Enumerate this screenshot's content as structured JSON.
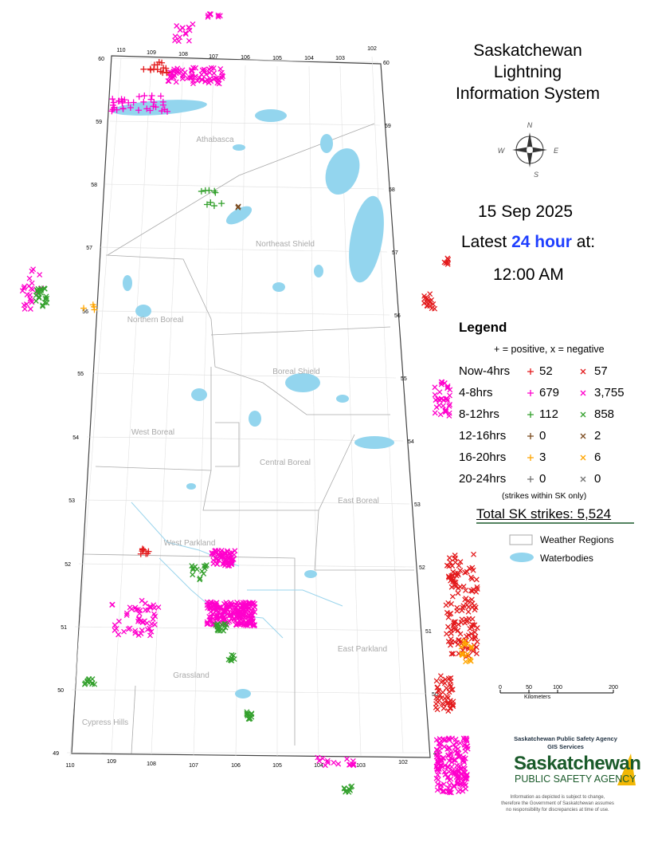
{
  "title": [
    "Saskatchewan",
    "Lightning",
    "Information System"
  ],
  "compass": {
    "n": "N",
    "e": "E",
    "s": "S",
    "w": "W"
  },
  "date": "15 Sep 2025",
  "latest": {
    "before": "Latest",
    "highlight": "24 hour",
    "after": "at:"
  },
  "time": "12:00 AM",
  "legend": {
    "title": "Legend",
    "note": "+ = positive, x = negative",
    "rows": [
      {
        "label": "Now-4hrs",
        "positive": "52",
        "negative": "57",
        "color": "#e31a1c"
      },
      {
        "label": "4-8hrs",
        "positive": "679",
        "negative": "3,755",
        "color": "#ff00cc"
      },
      {
        "label": "8-12hrs",
        "positive": "112",
        "negative": "858",
        "color": "#33a02c"
      },
      {
        "label": "12-16hrs",
        "positive": "0",
        "negative": "2",
        "color": "#7b4a1e"
      },
      {
        "label": "16-20hrs",
        "positive": "3",
        "negative": "6",
        "color": "#ffa500"
      },
      {
        "label": "20-24hrs",
        "positive": "0",
        "negative": "0",
        "color": "#707070"
      }
    ],
    "scope": "(strikes within SK only)",
    "total": "Total SK strikes: 5,524",
    "regions": "Weather Regions",
    "water": "Waterbodies"
  },
  "scale": {
    "ticks": [
      "0",
      "50",
      "100",
      "200"
    ],
    "unit": "Kilometers"
  },
  "credit": [
    "Saskatchewan Public Safety Agency",
    "GIS Services"
  ],
  "logo": [
    "Saskatchewan",
    "PUBLIC SAFETY AGENCY"
  ],
  "disclaimer": [
    "Information as depicted is subject to change,",
    "therefore the Government of Saskatchewan assumes",
    "no responsibility for discrepancies at time of use."
  ],
  "regions": [
    "Athabasca",
    "Northeast Shield",
    "Northern Boreal",
    "Boreal Shield",
    "West Boreal",
    "Central Boreal",
    "East Boreal",
    "West Parkland",
    "East Parkland",
    "Grassland",
    "Cypress Hills"
  ],
  "lat_labels": [
    "60",
    "59",
    "58",
    "57",
    "56",
    "55",
    "54",
    "53",
    "52",
    "51",
    "50",
    "49"
  ],
  "lon_labels": [
    "110",
    "109",
    "108",
    "107",
    "106",
    "105",
    "104",
    "103",
    "102"
  ]
}
